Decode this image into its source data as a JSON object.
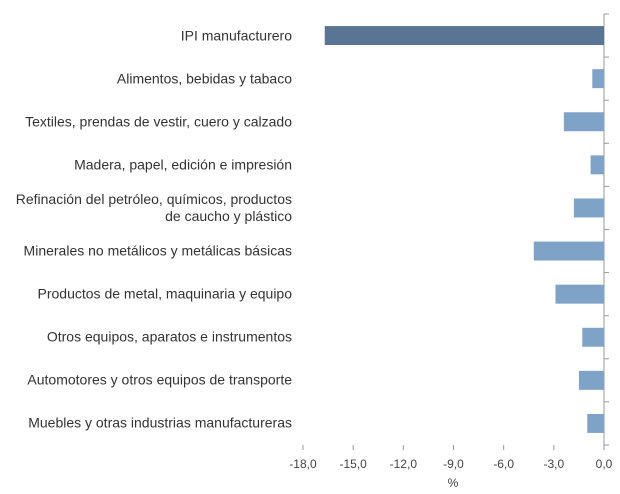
{
  "chart_data": {
    "type": "barh",
    "x_label": "%",
    "categories": [
      "IPI manufacturero",
      "Alimentos, bebidas y tabaco",
      "Textiles, prendas de vestir, cuero y calzado",
      "Madera, papel, edición e impresión",
      "Refinación del petróleo, químicos, productos de caucho y plástico",
      "Minerales no metálicos y metálicas básicas",
      "Productos de metal, maquinaria y equipo",
      "Otros equipos, aparatos e instrumentos",
      "Automotores y otros equipos de transporte",
      "Muebles y otras industrias manufactureras"
    ],
    "values": [
      -16.7,
      -0.7,
      -2.4,
      -0.8,
      -1.8,
      -4.2,
      -2.9,
      -1.3,
      -1.5,
      -1.0
    ],
    "colors": [
      "#5a7493",
      "#7ea3c6",
      "#7ea3c6",
      "#7ea3c6",
      "#7ea3c6",
      "#7ea3c6",
      "#7ea3c6",
      "#7ea3c6",
      "#7ea3c6",
      "#7ea3c6"
    ],
    "xlim": [
      -18,
      0
    ],
    "xticks": [
      {
        "value": -18,
        "label": "-18,0"
      },
      {
        "value": -15,
        "label": "-15,0"
      },
      {
        "value": -12,
        "label": "-12,0"
      },
      {
        "value": -9,
        "label": "-9,0"
      },
      {
        "value": -6,
        "label": "-6,0"
      },
      {
        "value": -3,
        "label": "-3,0"
      },
      {
        "value": 0,
        "label": "0,0"
      }
    ]
  }
}
